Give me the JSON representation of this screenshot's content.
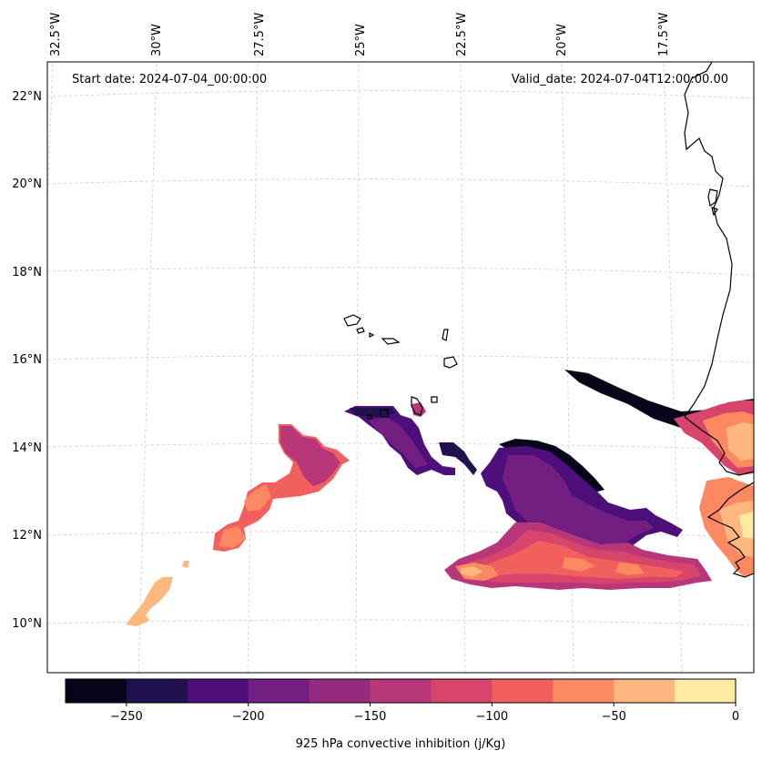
{
  "map": {
    "start_date_text": "Start date: 2024-07-04_00:00:00",
    "valid_date_text": "Valid_date: 2024-07-04T12:00:00.00",
    "lon_labels": [
      "32.5°W",
      "30°W",
      "27.5°W",
      "25°W",
      "22.5°W",
      "20°W",
      "17.5°W"
    ],
    "lat_labels": [
      "22°N",
      "20°N",
      "18°N",
      "16°N",
      "14°N",
      "12°N",
      "10°N"
    ],
    "field": "925 hPa convective inhibition",
    "region": "Eastern tropical Atlantic, Cape Verde islands and West African coast"
  },
  "colorbar": {
    "label": "925 hPa convective inhibition (j/Kg)",
    "min": -275,
    "max": 0,
    "tick_labels": [
      "−250",
      "−200",
      "−150",
      "−100",
      "−50",
      "0"
    ],
    "colors": [
      "#06051a",
      "#21114e",
      "#4d107b",
      "#721f81",
      "#952b7e",
      "#b73779",
      "#d8456c",
      "#f1605d",
      "#fc8961",
      "#feb77c",
      "#feeaa3"
    ]
  }
}
